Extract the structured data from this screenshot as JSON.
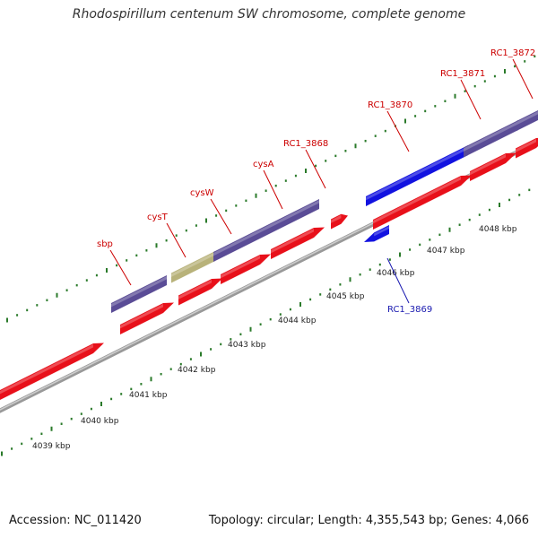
{
  "title": "Rhodospirillum centenum SW chromosome, complete genome",
  "footer": {
    "accession": "Accession: NC_011420",
    "summary": "Topology: circular; Length: 4,355,543 bp; Genes: 4,066"
  },
  "colors": {
    "cds_red": "#e8101a",
    "gene_purple": "#5a4c96",
    "gene_olive": "#b8b27a",
    "gene_blue": "#1212e0",
    "backbone": "#999999",
    "tick_green": "#2a7a2a",
    "label_red": "#cc0000",
    "label_blue": "#1a1ab0"
  },
  "scale_labels": [
    "4039 kbp",
    "4040 kbp",
    "4041 kbp",
    "4042 kbp",
    "4043 kbp",
    "4044 kbp",
    "4045 kbp",
    "4046 kbp",
    "4047 kbp",
    "4048 kbp"
  ],
  "gene_labels": [
    {
      "id": "sbp",
      "text": "sbp",
      "color": "red"
    },
    {
      "id": "cysT",
      "text": "cysT",
      "color": "red"
    },
    {
      "id": "cysW",
      "text": "cysW",
      "color": "red"
    },
    {
      "id": "cysA",
      "text": "cysA",
      "color": "red"
    },
    {
      "id": "RC1_3868",
      "text": "RC1_3868",
      "color": "red"
    },
    {
      "id": "RC1_3870",
      "text": "RC1_3870",
      "color": "red"
    },
    {
      "id": "RC1_3871",
      "text": "RC1_3871",
      "color": "red"
    },
    {
      "id": "RC1_3872",
      "text": "RC1_3872",
      "color": "red"
    },
    {
      "id": "RC1_3869",
      "text": "RC1_3869",
      "color": "blue"
    }
  ]
}
